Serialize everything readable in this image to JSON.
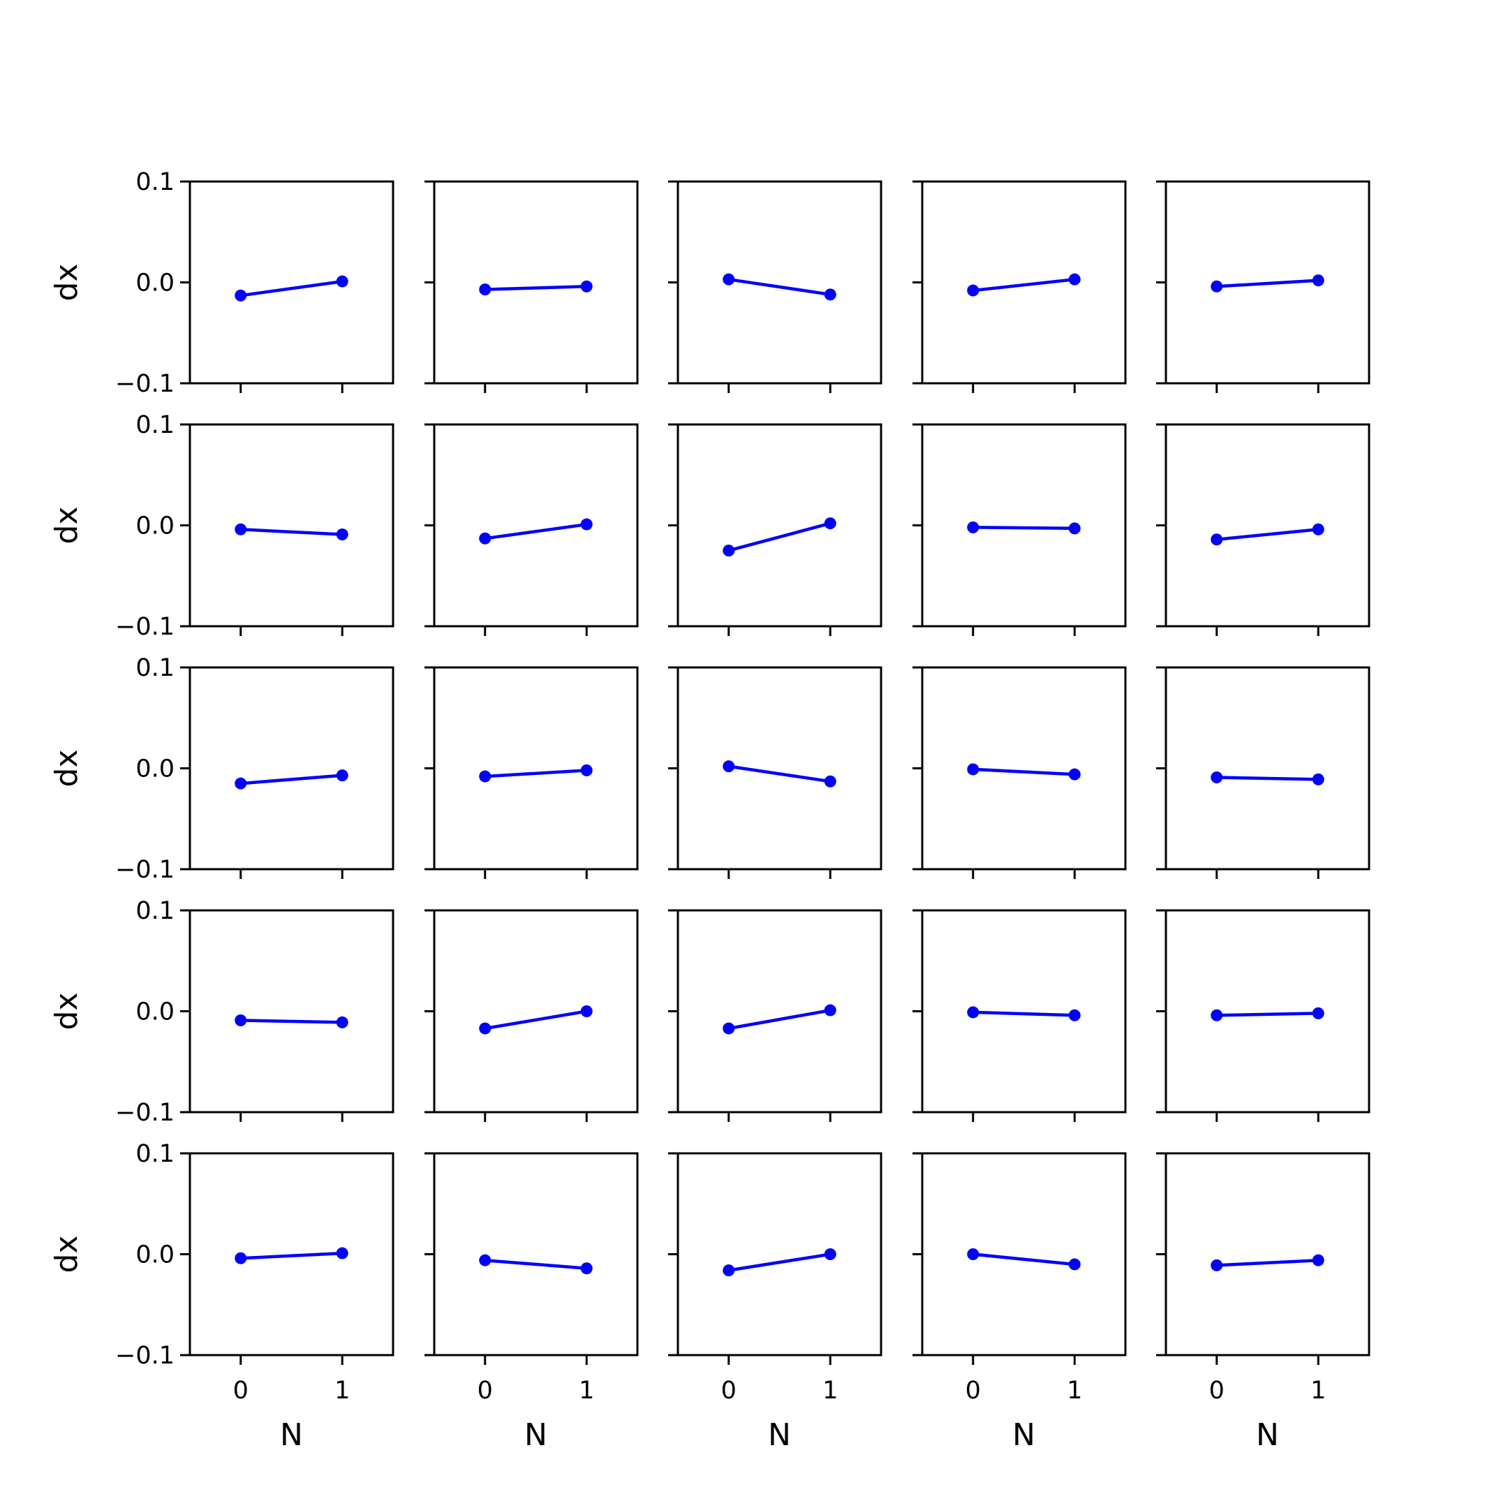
{
  "chart_data": {
    "type": "line",
    "layout": "5x5 grid of small multiples",
    "rows": 5,
    "cols": 5,
    "xlabel": "N",
    "ylabel": "dx",
    "x": [
      0,
      1
    ],
    "xticks": [
      "0",
      "1"
    ],
    "xlim": [
      -0.5,
      1.5
    ],
    "ylim": [
      -0.1,
      0.1
    ],
    "yticks": [
      "0.1",
      "0.0",
      "−0.1"
    ],
    "ytick_values": [
      0.1,
      0.0,
      -0.1
    ],
    "grid": false,
    "legend": "none",
    "series_color": "#0000ff",
    "marker": "circle",
    "panels": [
      {
        "row": 1,
        "col": 1,
        "y": [
          -0.013,
          0.001
        ]
      },
      {
        "row": 1,
        "col": 2,
        "y": [
          -0.007,
          -0.004
        ]
      },
      {
        "row": 1,
        "col": 3,
        "y": [
          0.003,
          -0.012
        ]
      },
      {
        "row": 1,
        "col": 4,
        "y": [
          -0.008,
          0.003
        ]
      },
      {
        "row": 1,
        "col": 5,
        "y": [
          -0.004,
          0.002
        ]
      },
      {
        "row": 2,
        "col": 1,
        "y": [
          -0.004,
          -0.009
        ]
      },
      {
        "row": 2,
        "col": 2,
        "y": [
          -0.013,
          0.001
        ]
      },
      {
        "row": 2,
        "col": 3,
        "y": [
          -0.025,
          0.002
        ]
      },
      {
        "row": 2,
        "col": 4,
        "y": [
          -0.002,
          -0.003
        ]
      },
      {
        "row": 2,
        "col": 5,
        "y": [
          -0.014,
          -0.004
        ]
      },
      {
        "row": 3,
        "col": 1,
        "y": [
          -0.015,
          -0.007
        ]
      },
      {
        "row": 3,
        "col": 2,
        "y": [
          -0.008,
          -0.002
        ]
      },
      {
        "row": 3,
        "col": 3,
        "y": [
          0.002,
          -0.013
        ]
      },
      {
        "row": 3,
        "col": 4,
        "y": [
          -0.001,
          -0.006
        ]
      },
      {
        "row": 3,
        "col": 5,
        "y": [
          -0.009,
          -0.011
        ]
      },
      {
        "row": 4,
        "col": 1,
        "y": [
          -0.009,
          -0.011
        ]
      },
      {
        "row": 4,
        "col": 2,
        "y": [
          -0.017,
          0.0
        ]
      },
      {
        "row": 4,
        "col": 3,
        "y": [
          -0.017,
          0.001
        ]
      },
      {
        "row": 4,
        "col": 4,
        "y": [
          -0.001,
          -0.004
        ]
      },
      {
        "row": 4,
        "col": 5,
        "y": [
          -0.004,
          -0.002
        ]
      },
      {
        "row": 5,
        "col": 1,
        "y": [
          -0.004,
          0.001
        ]
      },
      {
        "row": 5,
        "col": 2,
        "y": [
          -0.006,
          -0.014
        ]
      },
      {
        "row": 5,
        "col": 3,
        "y": [
          -0.016,
          0.0
        ]
      },
      {
        "row": 5,
        "col": 4,
        "y": [
          0.0,
          -0.01
        ]
      },
      {
        "row": 5,
        "col": 5,
        "y": [
          -0.011,
          -0.006
        ]
      }
    ]
  }
}
